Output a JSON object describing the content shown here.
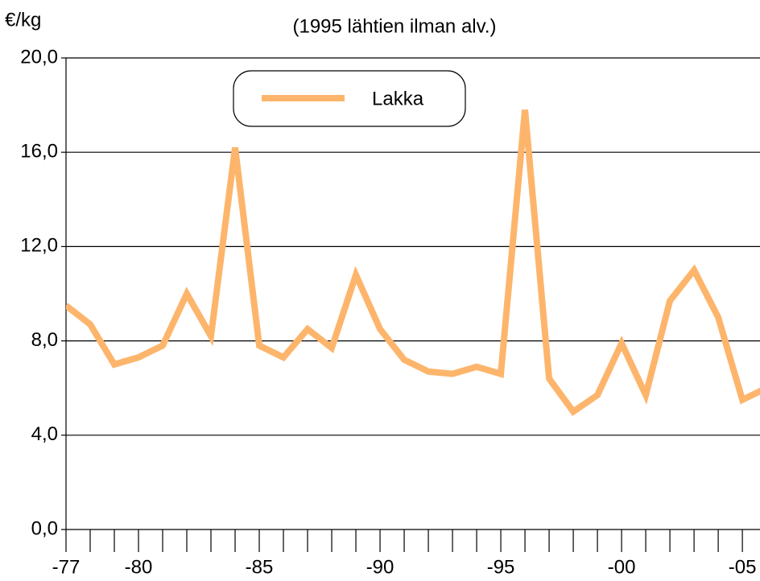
{
  "chart_data": {
    "type": "line",
    "subtitle": "(1995 lähtien ilman alv.)",
    "y_label": "€/kg",
    "x": [
      1977,
      1978,
      1979,
      1980,
      1981,
      1982,
      1983,
      1984,
      1985,
      1986,
      1987,
      1988,
      1989,
      1990,
      1991,
      1992,
      1993,
      1994,
      1995,
      1996,
      1997,
      1998,
      1999,
      2000,
      2001,
      2002,
      2003,
      2004,
      2005,
      2006
    ],
    "series": [
      {
        "name": "Lakka",
        "color": "#fdb56c",
        "values": [
          9.5,
          8.7,
          7.0,
          7.3,
          7.8,
          10.0,
          8.2,
          16.2,
          7.8,
          7.3,
          8.5,
          7.7,
          10.8,
          8.5,
          7.2,
          6.7,
          6.6,
          6.9,
          6.6,
          17.8,
          6.4,
          5.0,
          5.7,
          7.9,
          5.7,
          9.7,
          11.0,
          9.0,
          5.5,
          6.0
        ]
      }
    ],
    "xlim": [
      1977,
      2005.73
    ],
    "xticks": [
      {
        "value": 1977,
        "label": "-77"
      },
      {
        "value": 1980,
        "label": "-80"
      },
      {
        "value": 1985,
        "label": "-85"
      },
      {
        "value": 1990,
        "label": "-90"
      },
      {
        "value": 1995,
        "label": "-95"
      },
      {
        "value": 2000,
        "label": "-00"
      },
      {
        "value": 2005,
        "label": "-05"
      }
    ],
    "xminorticks": [
      1978,
      1979,
      1981,
      1982,
      1983,
      1984,
      1986,
      1987,
      1988,
      1989,
      1991,
      1992,
      1993,
      1994,
      1996,
      1997,
      1998,
      1999,
      2001,
      2002,
      2003,
      2004
    ],
    "ylim": [
      0,
      20
    ],
    "yticks": [
      {
        "value": 0,
        "label": "0,0"
      },
      {
        "value": 4,
        "label": "4,0"
      },
      {
        "value": 8,
        "label": "8,0"
      },
      {
        "value": 12,
        "label": "12,0"
      },
      {
        "value": 16,
        "label": "16,0"
      },
      {
        "value": 20,
        "label": "20,0"
      }
    ],
    "grid": true
  }
}
